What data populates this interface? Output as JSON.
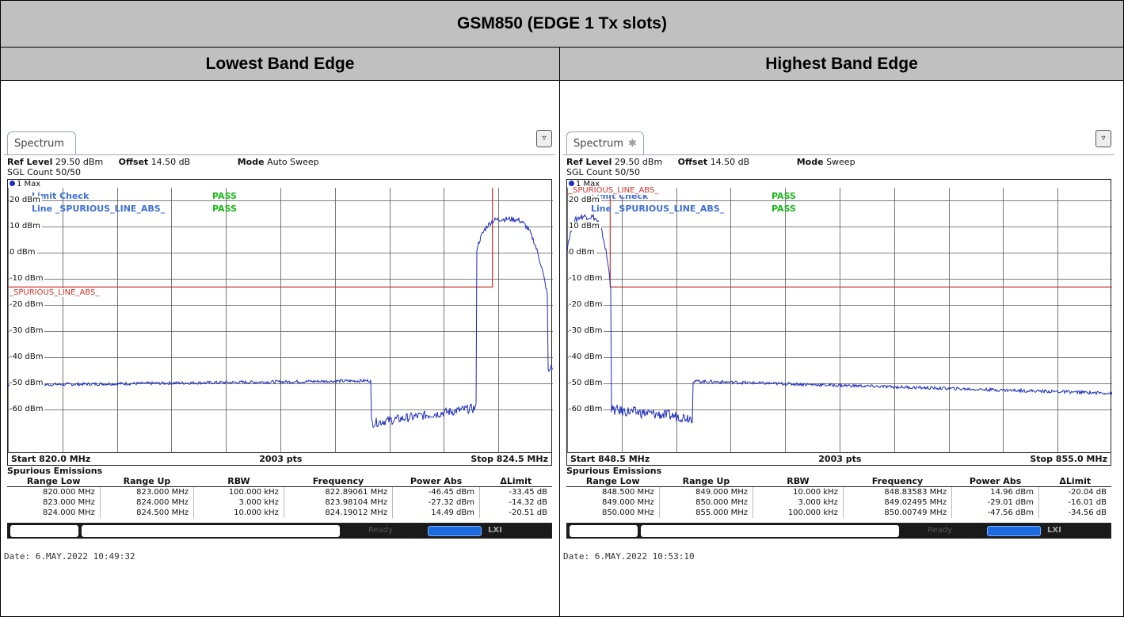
{
  "title": "GSM850 (EDGE 1 Tx slots)",
  "left_header": "Lowest Band Edge",
  "right_header": "Highest Band Edge",
  "panels": [
    {
      "tab": "Spectrum",
      "tab_icon": "",
      "ref_level_label": "Ref Level",
      "ref_level": "29.50 dBm",
      "offset_label": "Offset",
      "offset": "14.50 dB",
      "mode_label": "Mode",
      "mode": "Auto Sweep",
      "sgl_count": "SGL Count 50/50",
      "trace": "1 Max",
      "limit_check": "Limit Check",
      "limit_line": "Line _SPURIOUS_LINE_ABS_",
      "pass1": "PASS",
      "pass2": "PASS",
      "limit_name": "_SPURIOUS_LINE_ABS_",
      "y_labels": [
        "20 dBm",
        "10 dBm",
        "0 dBm",
        "-10 dBm",
        "-20 dBm",
        "-30 dBm",
        "-40 dBm",
        "-50 dBm",
        "-60 dBm"
      ],
      "start": "Start 820.0 MHz",
      "pts": "2003 pts",
      "stop": "Stop 824.5 MHz",
      "spur_title": "Spurious Emissions",
      "columns": [
        "Range Low",
        "Range Up",
        "RBW",
        "Frequency",
        "Power Abs",
        "ΔLimit"
      ],
      "rows": [
        [
          "820.000 MHz",
          "823.000 MHz",
          "100.000 kHz",
          "822.89061 MHz",
          "-46.45 dBm",
          "-33.45 dB"
        ],
        [
          "823.000 MHz",
          "824.000 MHz",
          "3.000 kHz",
          "823.98104 MHz",
          "-27.32 dBm",
          "-14.32 dB"
        ],
        [
          "824.000 MHz",
          "824.500 MHz",
          "10.000 kHz",
          "824.19012 MHz",
          "14.49 dBm",
          "-20.51 dB"
        ]
      ],
      "status_ready": "Ready",
      "status_lx": "LXI",
      "date": "Date: 6.MAY.2022  10:49:32"
    },
    {
      "tab": "Spectrum",
      "tab_icon": "✱",
      "ref_level_label": "Ref Level",
      "ref_level": "29.50 dBm",
      "offset_label": "Offset",
      "offset": "14.50 dB",
      "mode_label": "Mode",
      "mode": "Sweep",
      "sgl_count": "SGL Count 50/50",
      "trace": "1 Max",
      "limit_check": "Limit Check",
      "limit_line": "Line _SPURIOUS_LINE_ABS_",
      "pass1": "PASS",
      "pass2": "PASS",
      "limit_name": "_SPURIOUS_LINE_ABS_",
      "y_labels": [
        "20 dBm",
        "10 dBm",
        "0 dBm",
        "-10 dBm",
        "-20 dBm",
        "-30 dBm",
        "-40 dBm",
        "-50 dBm",
        "-60 dBm"
      ],
      "start": "Start 848.5 MHz",
      "pts": "2003 pts",
      "stop": "Stop 855.0 MHz",
      "spur_title": "Spurious Emissions",
      "columns": [
        "Range Low",
        "Range Up",
        "RBW",
        "Frequency",
        "Power Abs",
        "ΔLimit"
      ],
      "rows": [
        [
          "848.500 MHz",
          "849.000 MHz",
          "10.000 kHz",
          "848.83583 MHz",
          "14.96 dBm",
          "-20.04 dB"
        ],
        [
          "849.000 MHz",
          "850.000 MHz",
          "3.000 kHz",
          "849.02495 MHz",
          "-29.01 dBm",
          "-16.01 dB"
        ],
        [
          "850.000 MHz",
          "855.000 MHz",
          "100.000 kHz",
          "850.00749 MHz",
          "-47.56 dBm",
          "-34.56 dB"
        ]
      ],
      "status_ready": "Ready",
      "status_lx": "LXI",
      "date": "Date: 6.MAY.2022  10:53:10"
    }
  ],
  "colors": {
    "trace": "#1d2dbd",
    "limit": "#d0342c",
    "grid": "#444444",
    "header_bg": "#c0c0c0"
  }
}
